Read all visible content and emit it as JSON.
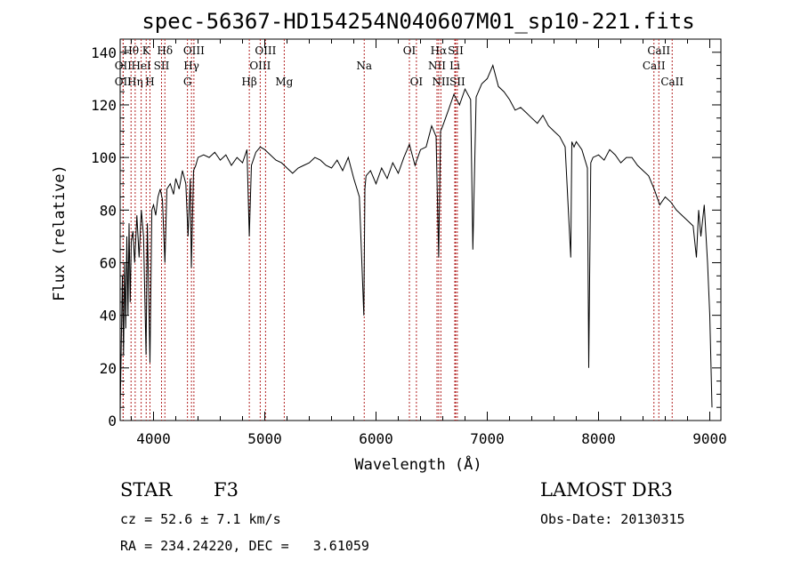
{
  "chart_data": {
    "type": "line",
    "title": "spec-56367-HD154254N040607M01_sp10-221.fits",
    "xlabel": "Wavelength (Å)",
    "ylabel": "Flux (relative)",
    "xlim": [
      3700,
      9100
    ],
    "ylim": [
      0,
      145
    ],
    "xticks": [
      4000,
      5000,
      6000,
      7000,
      8000,
      9000
    ],
    "yticks": [
      0,
      20,
      40,
      60,
      80,
      100,
      120,
      140
    ],
    "grid": false,
    "series": [
      {
        "color": "#000000",
        "x": [
          3700,
          3710,
          3720,
          3730,
          3740,
          3750,
          3760,
          3770,
          3780,
          3790,
          3800,
          3815,
          3830,
          3850,
          3870,
          3890,
          3910,
          3933,
          3945,
          3968,
          3985,
          4000,
          4020,
          4040,
          4060,
          4080,
          4102,
          4120,
          4150,
          4180,
          4200,
          4230,
          4260,
          4290,
          4310,
          4330,
          4340,
          4360,
          4380,
          4400,
          4450,
          4500,
          4550,
          4600,
          4650,
          4700,
          4750,
          4800,
          4840,
          4861,
          4880,
          4920,
          4960,
          5000,
          5050,
          5100,
          5150,
          5200,
          5250,
          5300,
          5350,
          5400,
          5450,
          5500,
          5550,
          5600,
          5650,
          5700,
          5750,
          5800,
          5850,
          5890,
          5900,
          5910,
          5950,
          6000,
          6050,
          6100,
          6150,
          6200,
          6250,
          6300,
          6350,
          6400,
          6450,
          6500,
          6540,
          6563,
          6580,
          6600,
          6650,
          6700,
          6750,
          6800,
          6850,
          6870,
          6900,
          6950,
          7000,
          7050,
          7100,
          7150,
          7200,
          7250,
          7300,
          7350,
          7400,
          7450,
          7500,
          7550,
          7600,
          7650,
          7700,
          7750,
          7760,
          7780,
          7800,
          7850,
          7900,
          7912,
          7930,
          7950,
          8000,
          8050,
          8100,
          8150,
          8200,
          8250,
          8300,
          8350,
          8400,
          8450,
          8500,
          8550,
          8600,
          8650,
          8700,
          8750,
          8800,
          8850,
          8880,
          8900,
          8920,
          8950,
          8980,
          9000,
          9020
        ],
        "y": [
          3,
          30,
          55,
          25,
          60,
          35,
          70,
          40,
          75,
          45,
          68,
          72,
          60,
          78,
          62,
          80,
          70,
          25,
          75,
          22,
          80,
          82,
          78,
          85,
          88,
          84,
          60,
          88,
          90,
          86,
          92,
          88,
          95,
          90,
          70,
          92,
          58,
          95,
          97,
          100,
          101,
          100,
          102,
          99,
          101,
          97,
          100,
          98,
          103,
          70,
          97,
          102,
          104,
          103,
          101,
          99,
          98,
          96,
          94,
          96,
          97,
          98,
          100,
          99,
          97,
          96,
          99,
          95,
          100,
          92,
          85,
          40,
          88,
          93,
          95,
          90,
          96,
          92,
          98,
          94,
          100,
          105,
          97,
          103,
          104,
          112,
          108,
          62,
          110,
          112,
          118,
          124,
          120,
          126,
          122,
          65,
          123,
          128,
          130,
          135,
          127,
          125,
          122,
          118,
          119,
          117,
          115,
          113,
          116,
          112,
          110,
          108,
          104,
          62,
          106,
          104,
          106,
          103,
          96,
          20,
          98,
          100,
          101,
          99,
          103,
          101,
          98,
          100,
          100,
          97,
          95,
          93,
          88,
          82,
          85,
          83,
          80,
          78,
          76,
          74,
          62,
          80,
          70,
          82,
          60,
          40,
          5
        ]
      }
    ],
    "line_ids": [
      {
        "name": "OII",
        "x": 3727,
        "row": 3
      },
      {
        "name": "OII",
        "x": 3727,
        "row": 2
      },
      {
        "name": "Hθ",
        "x": 3798,
        "row": 1
      },
      {
        "name": "Hη",
        "x": 3835,
        "row": 3
      },
      {
        "name": "HeI",
        "x": 3889,
        "row": 2
      },
      {
        "name": "K",
        "x": 3934,
        "row": 1
      },
      {
        "name": "SII",
        "x": 4072,
        "row": 2
      },
      {
        "name": "H",
        "x": 3968,
        "row": 3
      },
      {
        "name": "Hδ",
        "x": 4102,
        "row": 1
      },
      {
        "name": "G",
        "x": 4305,
        "row": 3
      },
      {
        "name": "Hγ",
        "x": 4341,
        "row": 2
      },
      {
        "name": "OIII",
        "x": 4363,
        "row": 1
      },
      {
        "name": "Hβ",
        "x": 4861,
        "row": 3
      },
      {
        "name": "OIII",
        "x": 4959,
        "row": 2
      },
      {
        "name": "OIII",
        "x": 5007,
        "row": 1
      },
      {
        "name": "Mg",
        "x": 5175,
        "row": 3
      },
      {
        "name": "Na",
        "x": 5894,
        "row": 2
      },
      {
        "name": "OI",
        "x": 6300,
        "row": 1
      },
      {
        "name": "OI",
        "x": 6363,
        "row": 3
      },
      {
        "name": "NII",
        "x": 6548,
        "row": 2
      },
      {
        "name": "Hα",
        "x": 6563,
        "row": 1
      },
      {
        "name": "NII",
        "x": 6583,
        "row": 3
      },
      {
        "name": "SII",
        "x": 6716,
        "row": 1
      },
      {
        "name": "Li",
        "x": 6708,
        "row": 2
      },
      {
        "name": "SII",
        "x": 6731,
        "row": 3
      },
      {
        "name": "CaII",
        "x": 8498,
        "row": 2
      },
      {
        "name": "CaII",
        "x": 8542,
        "row": 1
      },
      {
        "name": "CaII",
        "x": 8662,
        "row": 3
      }
    ]
  },
  "info": {
    "class": "STAR",
    "subclass": "F3",
    "survey": "LAMOST DR3",
    "cz": "cz = 52.6 ± 7.1 km/s",
    "obs_date": "Obs-Date: 20130315",
    "coords": "RA = 234.24220, DEC =   3.61059"
  }
}
